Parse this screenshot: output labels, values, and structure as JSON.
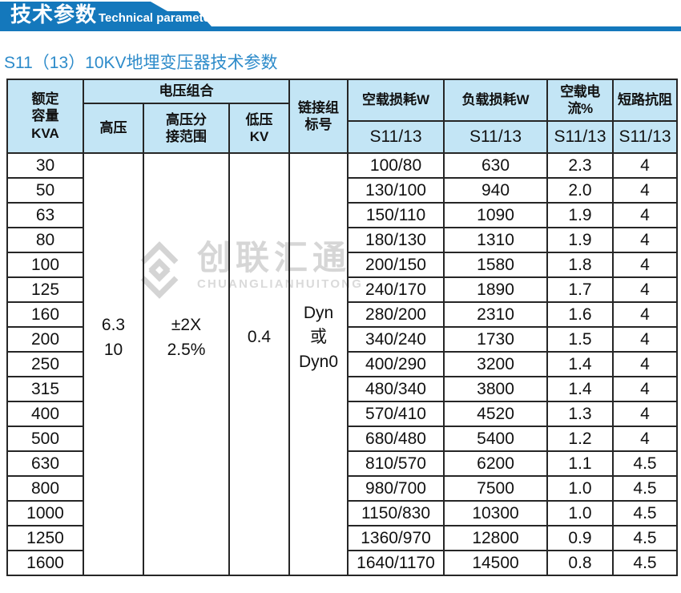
{
  "banner": {
    "title": "技术参数",
    "subtitle": "Technical parameter"
  },
  "page_title": "S11（13）10KV地埋变压器技术参数",
  "watermark": {
    "logo": "diamond-logo",
    "cn": "创联汇通",
    "en": "CHUANGLIANHUITONG"
  },
  "colors": {
    "banner_blue": "#1478bc",
    "title_blue": "#2d8bca",
    "header_bg": "#c3e5f5",
    "border": "#262626",
    "watermark_gray": "#d6d6d6",
    "text": "#111111",
    "white": "#ffffff"
  },
  "table": {
    "headers": {
      "capacity": "额定\n容量\nKVA",
      "voltage_group": "电压组合",
      "hv": "高压",
      "hv_tap": "高压分\n接范围",
      "lv": "低压\nKV",
      "vector_group": "链接组\n标号",
      "no_load_loss": "空载损耗W",
      "load_loss": "负载损耗W",
      "no_load_current": "空载电流%",
      "impedance": "短路抗阻",
      "model": "S11/13"
    },
    "merged": {
      "hv": "6.3\n10",
      "hv_tap": "±2X\n2.5%",
      "lv": "0.4",
      "vector": "Dyn\n或\nDyn0"
    },
    "rows": [
      {
        "kva": "30",
        "no_load": "100/80",
        "load": "630",
        "current": "2.3",
        "imp": "4"
      },
      {
        "kva": "50",
        "no_load": "130/100",
        "load": "940",
        "current": "2.0",
        "imp": "4"
      },
      {
        "kva": "63",
        "no_load": "150/110",
        "load": "1090",
        "current": "1.9",
        "imp": "4"
      },
      {
        "kva": "80",
        "no_load": "180/130",
        "load": "1310",
        "current": "1.9",
        "imp": "4"
      },
      {
        "kva": "100",
        "no_load": "200/150",
        "load": "1580",
        "current": "1.8",
        "imp": "4"
      },
      {
        "kva": "125",
        "no_load": "240/170",
        "load": "1890",
        "current": "1.7",
        "imp": "4"
      },
      {
        "kva": "160",
        "no_load": "280/200",
        "load": "2310",
        "current": "1.6",
        "imp": "4"
      },
      {
        "kva": "200",
        "no_load": "340/240",
        "load": "1730",
        "current": "1.5",
        "imp": "4"
      },
      {
        "kva": "250",
        "no_load": "400/290",
        "load": "3200",
        "current": "1.4",
        "imp": "4"
      },
      {
        "kva": "315",
        "no_load": "480/340",
        "load": "3800",
        "current": "1.4",
        "imp": "4"
      },
      {
        "kva": "400",
        "no_load": "570/410",
        "load": "4520",
        "current": "1.3",
        "imp": "4"
      },
      {
        "kva": "500",
        "no_load": "680/480",
        "load": "5400",
        "current": "1.2",
        "imp": "4"
      },
      {
        "kva": "630",
        "no_load": "810/570",
        "load": "6200",
        "current": "1.1",
        "imp": "4.5"
      },
      {
        "kva": "800",
        "no_load": "980/700",
        "load": "7500",
        "current": "1.0",
        "imp": "4.5"
      },
      {
        "kva": "1000",
        "no_load": "1150/830",
        "load": "10300",
        "current": "1.0",
        "imp": "4.5"
      },
      {
        "kva": "1250",
        "no_load": "1360/970",
        "load": "12800",
        "current": "0.9",
        "imp": "4.5"
      },
      {
        "kva": "1600",
        "no_load": "1640/1170",
        "load": "14500",
        "current": "0.8",
        "imp": "4.5"
      }
    ]
  }
}
